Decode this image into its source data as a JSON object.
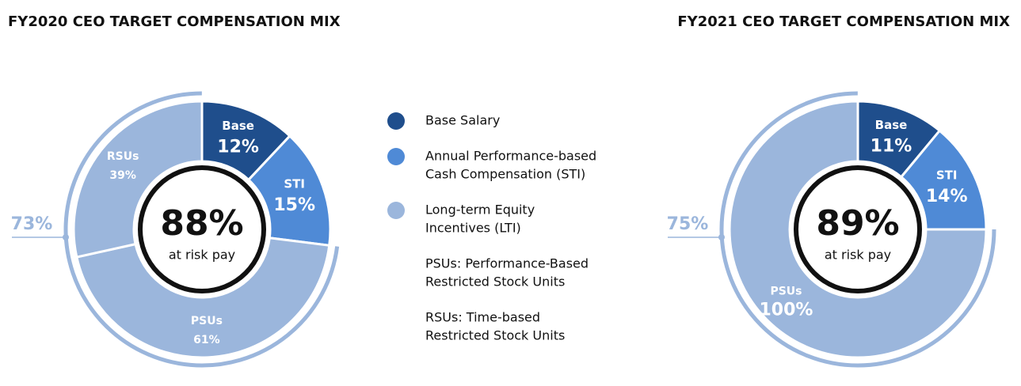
{
  "chart_data": [
    {
      "type": "pie",
      "title": "FY2020 CEO TARGET COMPENSATION MIX",
      "categories": [
        "Base",
        "STI",
        null
      ],
      "values": [
        12,
        15,
        73
      ],
      "value_labels": [
        "12%",
        "15%",
        "73%"
      ],
      "colors": [
        "#1f4e8c",
        "#4f8ad6",
        "#9bb6dc"
      ],
      "lti_split": {
        "categories": [
          "PSUs",
          "RSUs"
        ],
        "values": [
          61,
          39
        ],
        "value_labels": [
          "61%",
          "39%"
        ]
      },
      "center_label": "88%",
      "center_text": "at risk pay"
    },
    {
      "type": "pie",
      "title": "FY2021 CEO TARGET COMPENSATION MIX",
      "categories": [
        "Base",
        "STI",
        null
      ],
      "values": [
        11,
        14,
        75
      ],
      "value_labels": [
        "11%",
        "14%",
        "75%"
      ],
      "colors": [
        "#1f4e8c",
        "#4f8ad6",
        "#9bb6dc"
      ],
      "lti_split": {
        "categories": [
          "PSUs"
        ],
        "values": [
          100
        ],
        "value_labels": [
          "100%"
        ]
      },
      "center_label": "89%",
      "center_text": "at risk pay"
    }
  ],
  "legend": {
    "items": [
      {
        "lines": [
          "Base Salary"
        ],
        "color": "#1f4e8c"
      },
      {
        "lines": [
          "Annual Performance-based",
          "Cash Compensation (STI)"
        ],
        "color": "#4f8ad6"
      },
      {
        "lines": [
          "Long-term Equity",
          "Incentives (LTI)"
        ],
        "color": "#9bb6dc"
      }
    ],
    "notes": [
      [
        "PSUs: Performance-Based",
        "Restricted Stock Units"
      ],
      [
        "RSUs: Time-based",
        "Restricted Stock Units"
      ]
    ]
  }
}
